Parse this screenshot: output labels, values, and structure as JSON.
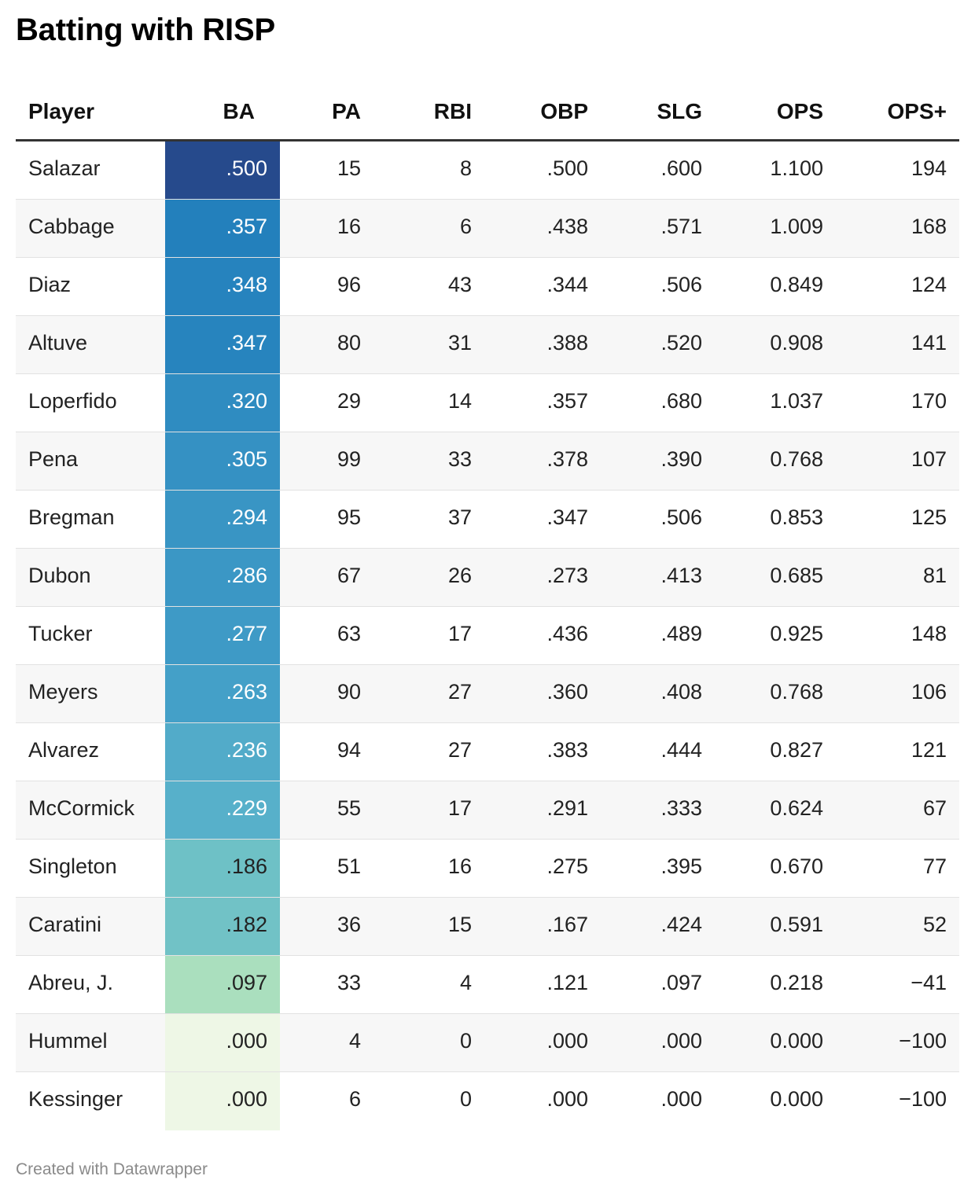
{
  "title": "Batting with RISP",
  "footer": "Created with Datawrapper",
  "chart_data": {
    "type": "table",
    "title": "Batting with RISP",
    "columns": [
      "Player",
      "BA",
      "PA",
      "RBI",
      "OBP",
      "SLG",
      "OPS",
      "OPS+"
    ],
    "rows": [
      {
        "player": "Salazar",
        "ba": ".500",
        "pa": "15",
        "rbi": "8",
        "obp": ".500",
        "slg": ".600",
        "ops": "1.100",
        "opsplus": "194",
        "ba_color": "#264a8c",
        "ba_text_color": "#ffffff"
      },
      {
        "player": "Cabbage",
        "ba": ".357",
        "pa": "16",
        "rbi": "6",
        "obp": ".438",
        "slg": ".571",
        "ops": "1.009",
        "opsplus": "168",
        "ba_color": "#2380bc",
        "ba_text_color": "#ffffff"
      },
      {
        "player": "Diaz",
        "ba": ".348",
        "pa": "96",
        "rbi": "43",
        "obp": ".344",
        "slg": ".506",
        "ops": "0.849",
        "opsplus": "124",
        "ba_color": "#2683be",
        "ba_text_color": "#ffffff"
      },
      {
        "player": "Altuve",
        "ba": ".347",
        "pa": "80",
        "rbi": "31",
        "obp": ".388",
        "slg": ".520",
        "ops": "0.908",
        "opsplus": "141",
        "ba_color": "#2784be",
        "ba_text_color": "#ffffff"
      },
      {
        "player": "Loperfido",
        "ba": ".320",
        "pa": "29",
        "rbi": "14",
        "obp": ".357",
        "slg": ".680",
        "ops": "1.037",
        "opsplus": "170",
        "ba_color": "#2f8cc1",
        "ba_text_color": "#ffffff"
      },
      {
        "player": "Pena",
        "ba": ".305",
        "pa": "99",
        "rbi": "33",
        "obp": ".378",
        "slg": ".390",
        "ops": "0.768",
        "opsplus": "107",
        "ba_color": "#3591c3",
        "ba_text_color": "#ffffff"
      },
      {
        "player": "Bregman",
        "ba": ".294",
        "pa": "95",
        "rbi": "37",
        "obp": ".347",
        "slg": ".506",
        "ops": "0.853",
        "opsplus": "125",
        "ba_color": "#3995c4",
        "ba_text_color": "#ffffff"
      },
      {
        "player": "Dubon",
        "ba": ".286",
        "pa": "67",
        "rbi": "26",
        "obp": ".273",
        "slg": ".413",
        "ops": "0.685",
        "opsplus": "81",
        "ba_color": "#3b97c5",
        "ba_text_color": "#ffffff"
      },
      {
        "player": "Tucker",
        "ba": ".277",
        "pa": "63",
        "rbi": "17",
        "obp": ".436",
        "slg": ".489",
        "ops": "0.925",
        "opsplus": "148",
        "ba_color": "#3e9ac6",
        "ba_text_color": "#ffffff"
      },
      {
        "player": "Meyers",
        "ba": ".263",
        "pa": "90",
        "rbi": "27",
        "obp": ".360",
        "slg": ".408",
        "ops": "0.768",
        "opsplus": "106",
        "ba_color": "#44a0c8",
        "ba_text_color": "#ffffff"
      },
      {
        "player": "Alvarez",
        "ba": ".236",
        "pa": "94",
        "rbi": "27",
        "obp": ".383",
        "slg": ".444",
        "ops": "0.827",
        "opsplus": "121",
        "ba_color": "#52abc9",
        "ba_text_color": "#ffffff"
      },
      {
        "player": "McCormick",
        "ba": ".229",
        "pa": "55",
        "rbi": "17",
        "obp": ".291",
        "slg": ".333",
        "ops": "0.624",
        "opsplus": "67",
        "ba_color": "#57b0ca",
        "ba_text_color": "#ffffff"
      },
      {
        "player": "Singleton",
        "ba": ".186",
        "pa": "51",
        "rbi": "16",
        "obp": ".275",
        "slg": ".395",
        "ops": "0.670",
        "opsplus": "77",
        "ba_color": "#6ec1c6",
        "ba_text_color": "#222222"
      },
      {
        "player": "Caratini",
        "ba": ".182",
        "pa": "36",
        "rbi": "15",
        "obp": ".167",
        "slg": ".424",
        "ops": "0.591",
        "opsplus": "52",
        "ba_color": "#71c2c6",
        "ba_text_color": "#222222"
      },
      {
        "player": "Abreu, J.",
        "ba": ".097",
        "pa": "33",
        "rbi": "4",
        "obp": ".121",
        "slg": ".097",
        "ops": "0.218",
        "opsplus": "−41",
        "ba_color": "#aadfbe",
        "ba_text_color": "#222222"
      },
      {
        "player": "Hummel",
        "ba": ".000",
        "pa": "4",
        "rbi": "0",
        "obp": ".000",
        "slg": ".000",
        "ops": "0.000",
        "opsplus": "−100",
        "ba_color": "#eef7e6",
        "ba_text_color": "#222222"
      },
      {
        "player": "Kessinger",
        "ba": ".000",
        "pa": "6",
        "rbi": "0",
        "obp": ".000",
        "slg": ".000",
        "ops": "0.000",
        "opsplus": "−100",
        "ba_color": "#eef7e6",
        "ba_text_color": "#222222"
      }
    ]
  }
}
